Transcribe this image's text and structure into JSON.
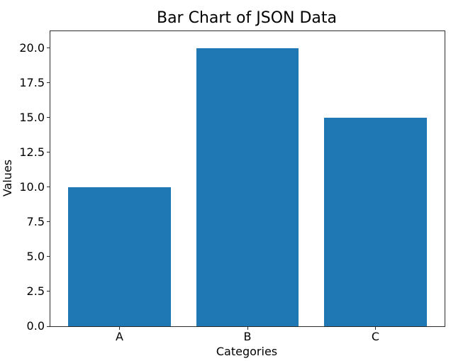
{
  "figure": {
    "background": "#ffffff",
    "text_color": "#000000",
    "spine_color": "#2b2b2b"
  },
  "chart_data": {
    "type": "bar",
    "title": "Bar Chart of JSON Data",
    "xlabel": "Categories",
    "ylabel": "Values",
    "categories": [
      "A",
      "B",
      "C"
    ],
    "values": [
      10,
      20,
      15
    ],
    "bar_color": "#1f77b4",
    "bar_width_fraction": 0.8,
    "xlim": [
      -0.54,
      2.54
    ],
    "ylim": [
      0,
      21.2
    ],
    "yticks": [
      0.0,
      2.5,
      5.0,
      7.5,
      10.0,
      12.5,
      15.0,
      17.5,
      20.0
    ],
    "ytick_labels": [
      "0.0",
      "2.5",
      "5.0",
      "7.5",
      "10.0",
      "12.5",
      "15.0",
      "17.5",
      "20.0"
    ],
    "grid": false,
    "legend": null
  }
}
